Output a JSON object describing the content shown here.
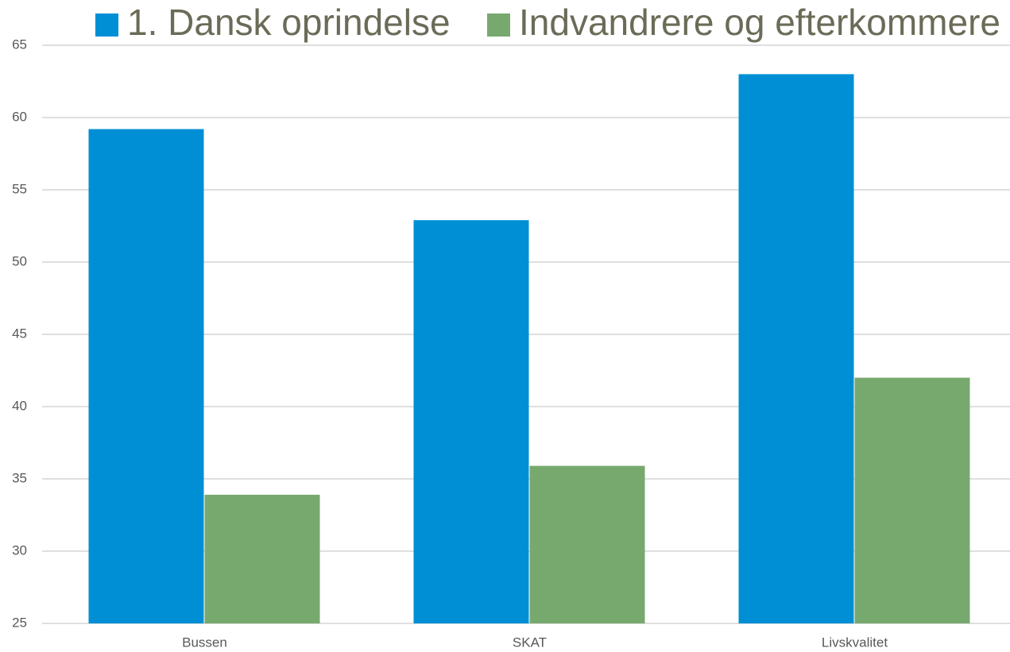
{
  "chart_data": {
    "type": "bar",
    "categories": [
      "Bussen",
      "SKAT",
      "Livskvalitet"
    ],
    "series": [
      {
        "name": "1. Dansk oprindelse",
        "color": "#008fd5",
        "values": [
          59.2,
          52.9,
          63.0
        ]
      },
      {
        "name": "Indvandrere og efterkommere",
        "color": "#77a96f",
        "values": [
          33.9,
          35.9,
          42.0
        ]
      }
    ],
    "ylim": [
      25,
      65
    ],
    "yticks": [
      25,
      30,
      35,
      40,
      45,
      50,
      55,
      60,
      65
    ],
    "grid": true,
    "legend": "top"
  }
}
